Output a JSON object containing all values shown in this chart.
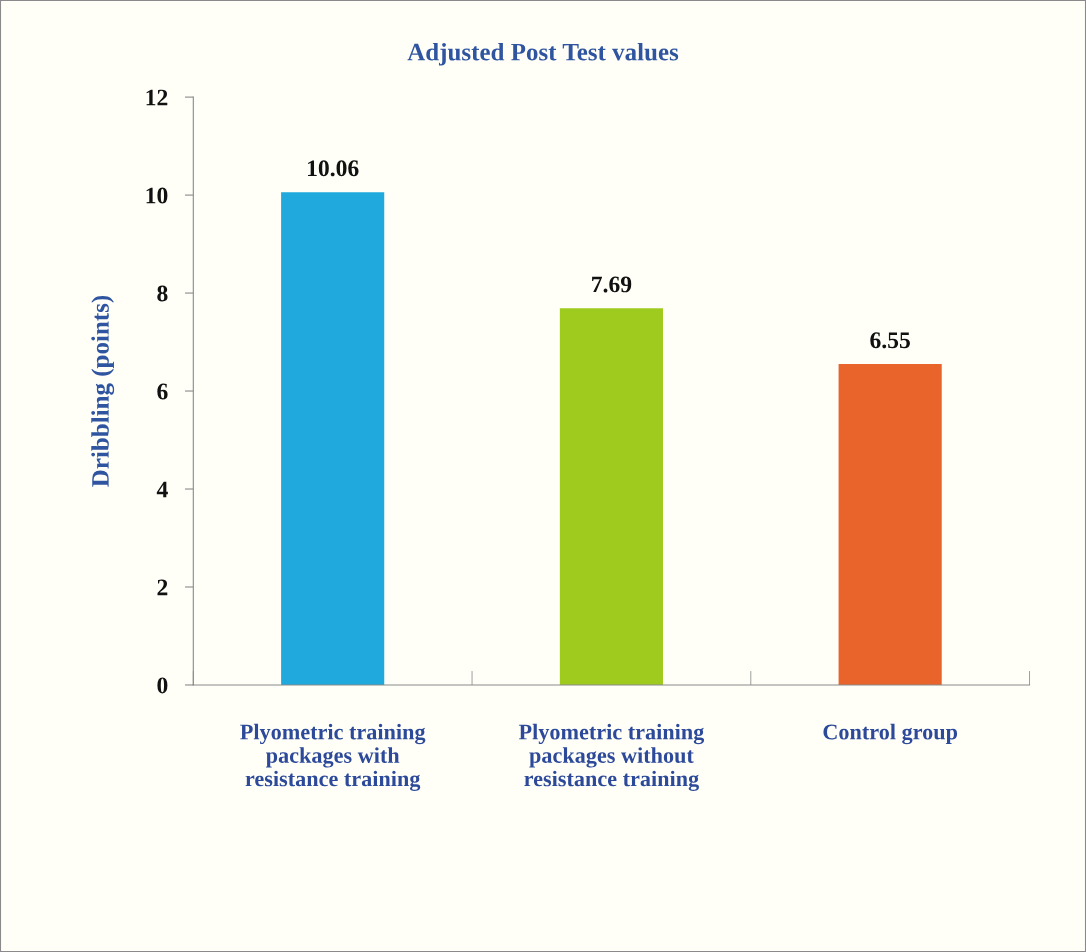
{
  "chart_data": {
    "type": "bar",
    "title": "Adjusted Post Test values",
    "ylabel": "Dribbling (points)",
    "categories": [
      "Plyometric training\npackages with\nresistance training",
      "Plyometric training\npackages without\nresistance training",
      "Control group"
    ],
    "values": [
      10.06,
      7.69,
      6.55
    ],
    "colors": [
      "#1fa9dd",
      "#9fcb1e",
      "#e8642a"
    ],
    "ylim": [
      0,
      12
    ],
    "yticks": [
      0,
      2,
      4,
      6,
      8,
      10,
      12
    ],
    "data_labels": true,
    "grid": false,
    "legend": false
  }
}
